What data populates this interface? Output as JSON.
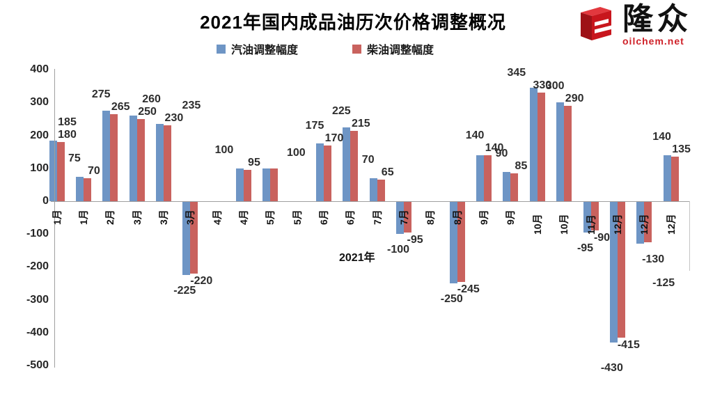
{
  "title": "2021年国内成品油历次价格调整概况",
  "logo": {
    "brand": "隆众",
    "site": "oilchem.net",
    "icon": "red-3d-e-cube",
    "brand_color": "#cf2129"
  },
  "legend": {
    "items": [
      {
        "label": "汽油调整幅度",
        "color": "#6e95c5"
      },
      {
        "label": "柴油调整幅度",
        "color": "#c9625e"
      }
    ]
  },
  "chart_data": {
    "type": "bar",
    "title": "2021年国内成品油历次价格调整概况",
    "xlabel": "2021年",
    "ylabel": "",
    "ylim": [
      -500,
      400
    ],
    "ytick_interval": 100,
    "yticks": [
      400,
      300,
      200,
      100,
      0,
      -100,
      -200,
      -300,
      -400,
      -500
    ],
    "grid": false,
    "legend_position": "top",
    "categories": [
      "1月",
      "1月",
      "2月",
      "3月",
      "3月",
      "3月",
      "4月",
      "4月",
      "5月",
      "5月",
      "6月",
      "6月",
      "7月",
      "7月",
      "8月",
      "8月",
      "9月",
      "9月",
      "10月",
      "10月",
      "11月",
      "12月",
      "12月",
      "12月"
    ],
    "series": [
      {
        "name": "汽油调整幅度",
        "color": "#6e95c5",
        "values": [
          185,
          75,
          275,
          260,
          235,
          -225,
          0,
          100,
          100,
          0,
          175,
          225,
          70,
          -100,
          0,
          -250,
          140,
          90,
          345,
          300,
          -95,
          -430,
          -130,
          140
        ]
      },
      {
        "name": "柴油调整幅度",
        "color": "#c9625e",
        "values": [
          180,
          70,
          265,
          250,
          230,
          -220,
          0,
          95,
          100,
          0,
          170,
          215,
          65,
          -95,
          0,
          -245,
          140,
          85,
          330,
          290,
          -90,
          -415,
          -125,
          135
        ]
      }
    ],
    "zero_value_means_no_bar": true,
    "label_overrides": {
      "8": {
        "gasoline_label": ""
      }
    }
  }
}
